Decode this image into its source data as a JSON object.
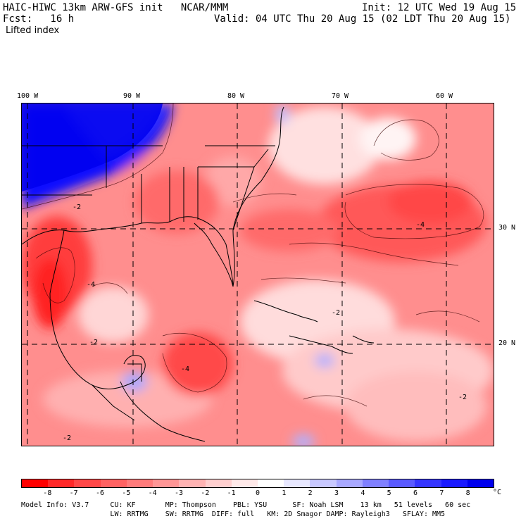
{
  "header": {
    "model_line": "HAIC-HIWC 13km ARW-GFS init   NCAR/MMM",
    "init_line": "Init: 12 UTC Wed 19 Aug 15",
    "fcst_line": "Fcst:   16 h",
    "valid_line": "Valid: 04 UTC Thu 20 Aug 15 (02 LDT Thu 20 Aug 15)",
    "field_line": "Lifted index"
  },
  "map": {
    "lon_labels": [
      "100 W",
      "90 W",
      "80 W",
      "70 W",
      "60 W"
    ],
    "lat_labels": [
      "30 N",
      "20 N"
    ],
    "contour_labels": [
      "-4",
      "-4",
      "-2",
      "-2",
      "-2",
      "-2",
      "-4",
      "-2"
    ]
  },
  "colorbar": {
    "ticks": [
      "-8",
      "-7",
      "-6",
      "-5",
      "-4",
      "-3",
      "-2",
      "-1",
      "0",
      "1",
      "2",
      "3",
      "4",
      "5",
      "6",
      "7",
      "8"
    ],
    "unit": "°C",
    "colors": [
      "#ff0000",
      "#ff2828",
      "#ff4747",
      "#ff6262",
      "#ff7b7b",
      "#ff9696",
      "#ffb3b3",
      "#ffcfcf",
      "#ffe9e9",
      "#ffffff",
      "#e8e8ff",
      "#c8c8ff",
      "#a8a8ff",
      "#8080ff",
      "#5a5aff",
      "#3535ff",
      "#1a1aff",
      "#0000ee"
    ]
  },
  "model_info": {
    "line1": "Model Info: V3.7     CU: KF       MP: Thompson    PBL: YSU      SF: Noah LSM    13 km   51 levels   60 sec",
    "line2": "                     LW: RRTMG    SW: RRTMG  DIFF: full   KM: 2D Smagor DAMP: Rayleigh3   SFLAY: MM5"
  }
}
